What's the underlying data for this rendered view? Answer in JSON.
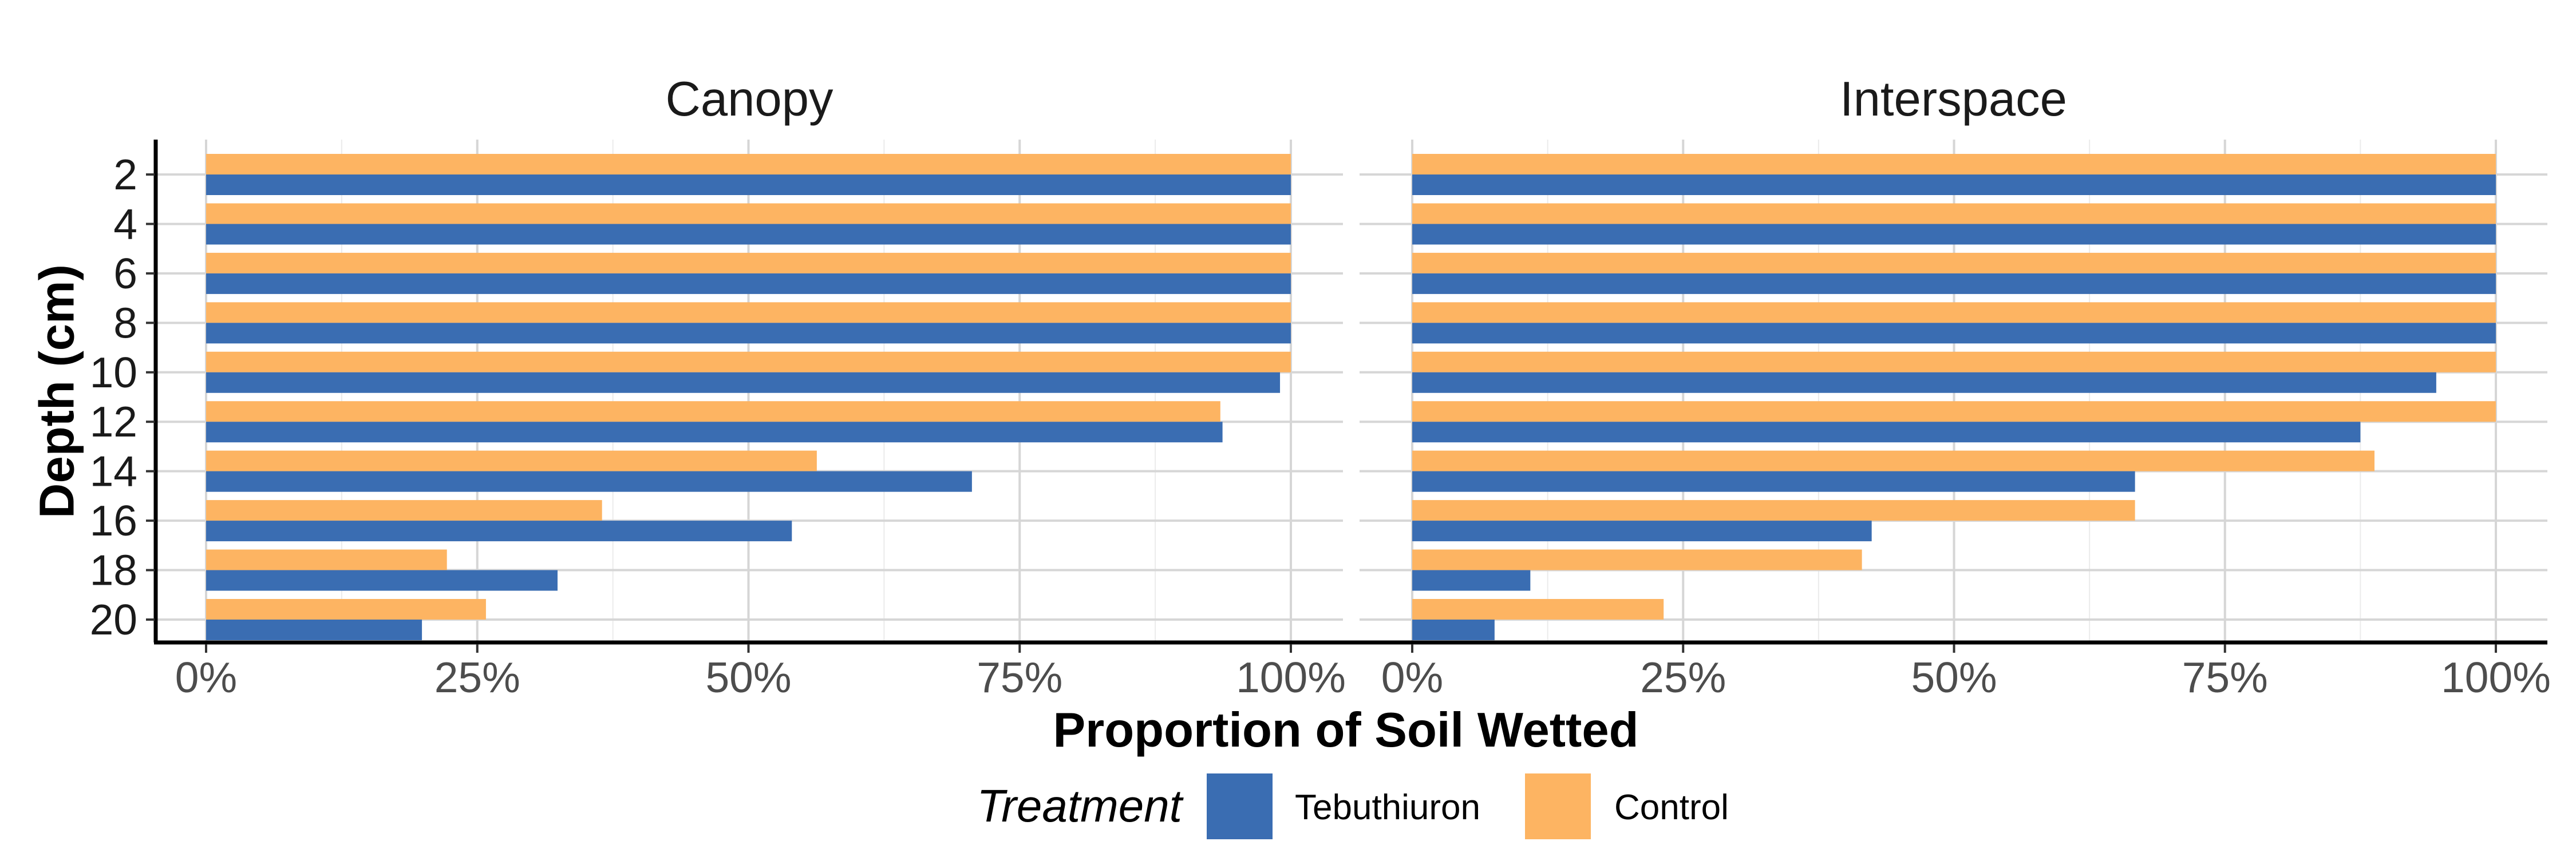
{
  "chart_data": {
    "type": "bar",
    "orientation": "horizontal",
    "xlabel": "Proportion of Soil Wetted",
    "ylabel": "Depth (cm)",
    "xlim": [
      0,
      1
    ],
    "x_ticks": [
      "0%",
      "25%",
      "50%",
      "75%",
      "100%"
    ],
    "x_tick_values": [
      0,
      0.25,
      0.5,
      0.75,
      1.0
    ],
    "categories": [
      "2",
      "4",
      "6",
      "8",
      "10",
      "12",
      "14",
      "16",
      "18",
      "20"
    ],
    "grid": true,
    "legend": {
      "title": "Treatment",
      "position": "bottom",
      "entries": [
        {
          "name": "Tebuthiuron",
          "color": "#3a6db2"
        },
        {
          "name": "Control",
          "color": "#fdb462"
        }
      ]
    },
    "facets": [
      {
        "title": "Canopy",
        "series": [
          {
            "name": "Control",
            "color": "#fdb462",
            "values": [
              1.0,
              1.0,
              1.0,
              1.0,
              1.0,
              0.935,
              0.563,
              0.365,
              0.222,
              0.258
            ]
          },
          {
            "name": "Tebuthiuron",
            "color": "#3a6db2",
            "values": [
              1.0,
              1.0,
              1.0,
              1.0,
              0.99,
              0.937,
              0.706,
              0.54,
              0.324,
              0.199
            ]
          }
        ]
      },
      {
        "title": "Interspace",
        "series": [
          {
            "name": "Control",
            "color": "#fdb462",
            "values": [
              1.0,
              1.0,
              1.0,
              1.0,
              1.0,
              1.0,
              0.888,
              0.667,
              0.415,
              0.232
            ]
          },
          {
            "name": "Tebuthiuron",
            "color": "#3a6db2",
            "values": [
              1.0,
              1.0,
              1.0,
              1.0,
              0.945,
              0.875,
              0.667,
              0.424,
              0.109,
              0.076
            ]
          }
        ]
      }
    ]
  }
}
